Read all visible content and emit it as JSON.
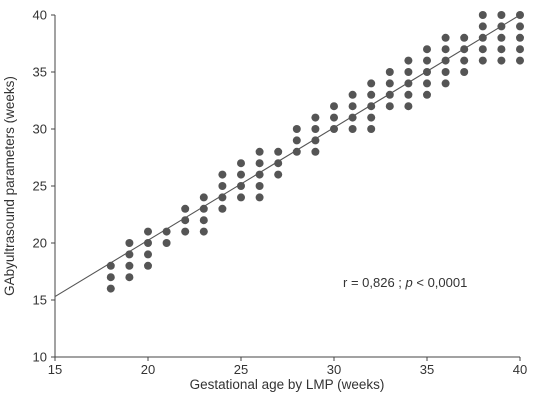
{
  "chart_data": {
    "type": "scatter",
    "title": "",
    "xlabel": "Gestational age by LMP (weeks)",
    "ylabel": "GAbyultrasound parameters (weeks)",
    "xlim": [
      15,
      40
    ],
    "ylim": [
      10,
      40
    ],
    "xticks": [
      15,
      20,
      25,
      30,
      35,
      40
    ],
    "yticks": [
      10,
      15,
      20,
      25,
      30,
      35,
      40
    ],
    "grid": false,
    "annotation": {
      "r_text": "r = 0,826 ; ",
      "p_italic": "p",
      "p_rest": " < 0,0001"
    },
    "regression_line": {
      "x": [
        15,
        40
      ],
      "y": [
        15.3,
        40
      ]
    },
    "point_color": "#555555",
    "line_color": "#555555",
    "points": [
      [
        18,
        16
      ],
      [
        18,
        17
      ],
      [
        18,
        18
      ],
      [
        19,
        17
      ],
      [
        19,
        18
      ],
      [
        19,
        19
      ],
      [
        19,
        20
      ],
      [
        20,
        18
      ],
      [
        20,
        19
      ],
      [
        20,
        20
      ],
      [
        20,
        21
      ],
      [
        21,
        20
      ],
      [
        21,
        21
      ],
      [
        22,
        21
      ],
      [
        22,
        22
      ],
      [
        22,
        23
      ],
      [
        23,
        21
      ],
      [
        23,
        22
      ],
      [
        23,
        23
      ],
      [
        23,
        24
      ],
      [
        24,
        23
      ],
      [
        24,
        24
      ],
      [
        24,
        25
      ],
      [
        24,
        26
      ],
      [
        25,
        24
      ],
      [
        25,
        25
      ],
      [
        25,
        26
      ],
      [
        25,
        27
      ],
      [
        26,
        24
      ],
      [
        26,
        25
      ],
      [
        26,
        26
      ],
      [
        26,
        27
      ],
      [
        26,
        28
      ],
      [
        27,
        26
      ],
      [
        27,
        27
      ],
      [
        27,
        28
      ],
      [
        28,
        28
      ],
      [
        28,
        29
      ],
      [
        28,
        30
      ],
      [
        29,
        28
      ],
      [
        29,
        29
      ],
      [
        29,
        30
      ],
      [
        29,
        31
      ],
      [
        30,
        30
      ],
      [
        30,
        31
      ],
      [
        30,
        32
      ],
      [
        31,
        30
      ],
      [
        31,
        31
      ],
      [
        31,
        32
      ],
      [
        31,
        33
      ],
      [
        32,
        30
      ],
      [
        32,
        31
      ],
      [
        32,
        32
      ],
      [
        32,
        33
      ],
      [
        32,
        34
      ],
      [
        33,
        32
      ],
      [
        33,
        33
      ],
      [
        33,
        34
      ],
      [
        33,
        35
      ],
      [
        34,
        32
      ],
      [
        34,
        33
      ],
      [
        34,
        34
      ],
      [
        34,
        35
      ],
      [
        34,
        36
      ],
      [
        35,
        33
      ],
      [
        35,
        34
      ],
      [
        35,
        35
      ],
      [
        35,
        36
      ],
      [
        35,
        37
      ],
      [
        36,
        34
      ],
      [
        36,
        35
      ],
      [
        36,
        36
      ],
      [
        36,
        37
      ],
      [
        36,
        38
      ],
      [
        37,
        35
      ],
      [
        37,
        36
      ],
      [
        37,
        37
      ],
      [
        37,
        38
      ],
      [
        38,
        36
      ],
      [
        38,
        37
      ],
      [
        38,
        38
      ],
      [
        38,
        39
      ],
      [
        38,
        40
      ],
      [
        39,
        36
      ],
      [
        39,
        37
      ],
      [
        39,
        38
      ],
      [
        39,
        39
      ],
      [
        39,
        40
      ],
      [
        40,
        36
      ],
      [
        40,
        37
      ],
      [
        40,
        38
      ],
      [
        40,
        39
      ],
      [
        40,
        40
      ]
    ]
  }
}
